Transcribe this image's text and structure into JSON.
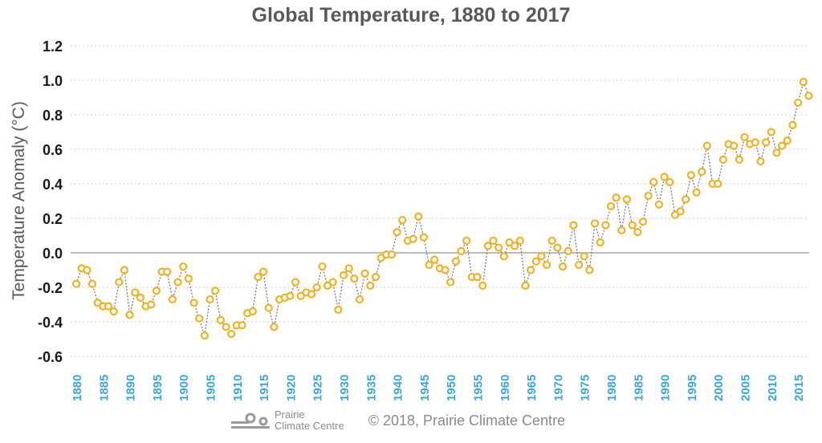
{
  "chart_data": {
    "type": "line",
    "title": "Global Temperature, 1880 to 2017",
    "xlabel": "",
    "ylabel": "Temperature Anomaly (°C)",
    "ylim": [
      -0.6,
      1.2
    ],
    "xlim": [
      1880,
      2017
    ],
    "y_ticks": [
      "-0.6",
      "-0.4",
      "-0.2",
      "0.0",
      "0.2",
      "0.4",
      "0.6",
      "0.8",
      "1.0",
      "1.2"
    ],
    "x_ticks": [
      "1880",
      "1885",
      "1890",
      "1895",
      "1900",
      "1905",
      "1910",
      "1915",
      "1920",
      "1925",
      "1930",
      "1935",
      "1940",
      "1945",
      "1950",
      "1955",
      "1960",
      "1965",
      "1970",
      "1975",
      "1980",
      "1985",
      "1990",
      "1995",
      "2000",
      "2005",
      "2010",
      "2015"
    ],
    "grid": true,
    "legend": "none",
    "series": [
      {
        "name": "Temperature Anomaly",
        "color": "#f3b120",
        "line_color": "#6b7080",
        "x_start": 1880,
        "values": [
          -0.18,
          -0.09,
          -0.1,
          -0.18,
          -0.29,
          -0.31,
          -0.31,
          -0.34,
          -0.17,
          -0.1,
          -0.36,
          -0.23,
          -0.26,
          -0.31,
          -0.3,
          -0.22,
          -0.11,
          -0.11,
          -0.27,
          -0.17,
          -0.08,
          -0.15,
          -0.29,
          -0.38,
          -0.48,
          -0.27,
          -0.22,
          -0.39,
          -0.43,
          -0.47,
          -0.42,
          -0.42,
          -0.35,
          -0.34,
          -0.14,
          -0.11,
          -0.32,
          -0.43,
          -0.27,
          -0.26,
          -0.25,
          -0.17,
          -0.25,
          -0.23,
          -0.24,
          -0.2,
          -0.08,
          -0.19,
          -0.17,
          -0.33,
          -0.13,
          -0.09,
          -0.15,
          -0.27,
          -0.12,
          -0.19,
          -0.14,
          -0.03,
          -0.01,
          -0.01,
          0.12,
          0.19,
          0.07,
          0.08,
          0.21,
          0.09,
          -0.07,
          -0.04,
          -0.09,
          -0.1,
          -0.17,
          -0.05,
          0.01,
          0.07,
          -0.14,
          -0.14,
          -0.19,
          0.04,
          0.07,
          0.03,
          -0.02,
          0.06,
          0.04,
          0.07,
          -0.19,
          -0.1,
          -0.05,
          -0.02,
          -0.07,
          0.07,
          0.03,
          -0.08,
          0.01,
          0.16,
          -0.07,
          -0.02,
          -0.1,
          0.17,
          0.06,
          0.16,
          0.27,
          0.32,
          0.13,
          0.31,
          0.16,
          0.12,
          0.18,
          0.33,
          0.41,
          0.28,
          0.44,
          0.41,
          0.22,
          0.24,
          0.31,
          0.45,
          0.35,
          0.47,
          0.62,
          0.4,
          0.4,
          0.54,
          0.63,
          0.62,
          0.54,
          0.67,
          0.63,
          0.64,
          0.53,
          0.64,
          0.7,
          0.58,
          0.62,
          0.65,
          0.74,
          0.87,
          0.99,
          0.91
        ]
      }
    ],
    "colors": {
      "title": "#595959",
      "ytick": "#1a1a1a",
      "xtick": "#3aa5dc",
      "zero_line": "#a6a6a6",
      "grid": "#cfcfcf"
    }
  },
  "footer": {
    "logo_line1": "Prairie",
    "logo_line2": "Climate Centre",
    "copyright": "© 2018, Prairie Climate Centre"
  }
}
